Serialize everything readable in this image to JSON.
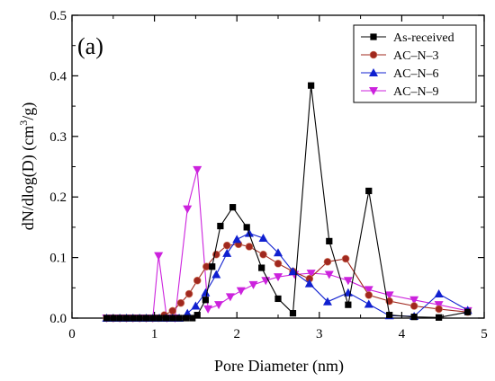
{
  "chart_data": {
    "type": "line",
    "panel_label": "(a)",
    "xlabel": "Pore Diameter (nm)",
    "ylabel_main": "dN/dlog(D) (cm",
    "ylabel_sup": "3",
    "ylabel_end": "/g)",
    "xlim": [
      0,
      5
    ],
    "ylim": [
      0,
      0.5
    ],
    "xticks": [
      0,
      1,
      2,
      3,
      4,
      5
    ],
    "yticks": [
      0.0,
      0.1,
      0.2,
      0.3,
      0.4,
      0.5
    ],
    "xtick_labels": [
      "0",
      "1",
      "2",
      "3",
      "4",
      "5"
    ],
    "ytick_labels": [
      "0.0",
      "0.1",
      "0.2",
      "0.3",
      "0.4",
      "0.5"
    ],
    "grid": false,
    "legend_position": "top-right",
    "series": [
      {
        "name": "As-received",
        "color": "#000000",
        "marker": "square",
        "points": [
          [
            0.42,
            0
          ],
          [
            0.5,
            0
          ],
          [
            0.58,
            0
          ],
          [
            0.66,
            0
          ],
          [
            0.74,
            0
          ],
          [
            0.82,
            0
          ],
          [
            0.9,
            0
          ],
          [
            0.98,
            0
          ],
          [
            1.06,
            0
          ],
          [
            1.14,
            0
          ],
          [
            1.22,
            0
          ],
          [
            1.3,
            0
          ],
          [
            1.38,
            0
          ],
          [
            1.46,
            0
          ],
          [
            1.52,
            0.005
          ],
          [
            1.62,
            0.03
          ],
          [
            1.7,
            0.085
          ],
          [
            1.8,
            0.152
          ],
          [
            1.95,
            0.183
          ],
          [
            2.12,
            0.15
          ],
          [
            2.3,
            0.083
          ],
          [
            2.5,
            0.032
          ],
          [
            2.68,
            0.008
          ],
          [
            2.9,
            0.384
          ],
          [
            3.12,
            0.127
          ],
          [
            3.35,
            0.022
          ],
          [
            3.6,
            0.21
          ],
          [
            3.85,
            0.005
          ],
          [
            4.15,
            0.002
          ],
          [
            4.45,
            0.001
          ],
          [
            4.8,
            0.01
          ]
        ]
      },
      {
        "name": "AC–N–3",
        "color": "#a0281e",
        "marker": "circle",
        "points": [
          [
            0.42,
            0
          ],
          [
            0.5,
            0
          ],
          [
            0.58,
            0
          ],
          [
            0.66,
            0
          ],
          [
            0.74,
            0
          ],
          [
            0.82,
            0
          ],
          [
            0.9,
            0
          ],
          [
            0.98,
            0
          ],
          [
            1.05,
            0
          ],
          [
            1.12,
            0.005
          ],
          [
            1.22,
            0.012
          ],
          [
            1.32,
            0.025
          ],
          [
            1.42,
            0.04
          ],
          [
            1.52,
            0.062
          ],
          [
            1.63,
            0.085
          ],
          [
            1.75,
            0.105
          ],
          [
            1.88,
            0.12
          ],
          [
            2.02,
            0.122
          ],
          [
            2.15,
            0.118
          ],
          [
            2.32,
            0.105
          ],
          [
            2.5,
            0.09
          ],
          [
            2.68,
            0.077
          ],
          [
            2.88,
            0.065
          ],
          [
            3.1,
            0.093
          ],
          [
            3.32,
            0.098
          ],
          [
            3.6,
            0.038
          ],
          [
            3.85,
            0.028
          ],
          [
            4.15,
            0.02
          ],
          [
            4.45,
            0.015
          ],
          [
            4.8,
            0.01
          ]
        ]
      },
      {
        "name": "AC–N–6",
        "color": "#1020d0",
        "marker": "triangle-up",
        "points": [
          [
            0.42,
            0
          ],
          [
            0.5,
            0
          ],
          [
            0.58,
            0
          ],
          [
            0.66,
            0
          ],
          [
            0.74,
            0
          ],
          [
            0.82,
            0
          ],
          [
            0.9,
            0
          ],
          [
            0.98,
            0
          ],
          [
            1.06,
            0
          ],
          [
            1.14,
            0
          ],
          [
            1.22,
            0
          ],
          [
            1.3,
            0
          ],
          [
            1.4,
            0.008
          ],
          [
            1.5,
            0.02
          ],
          [
            1.62,
            0.042
          ],
          [
            1.75,
            0.072
          ],
          [
            1.88,
            0.107
          ],
          [
            2.0,
            0.13
          ],
          [
            2.15,
            0.14
          ],
          [
            2.32,
            0.132
          ],
          [
            2.5,
            0.108
          ],
          [
            2.68,
            0.077
          ],
          [
            2.88,
            0.057
          ],
          [
            3.1,
            0.027
          ],
          [
            3.35,
            0.042
          ],
          [
            3.6,
            0.023
          ],
          [
            3.85,
            0.004
          ],
          [
            4.15,
            0.003
          ],
          [
            4.45,
            0.04
          ],
          [
            4.8,
            0.013
          ]
        ]
      },
      {
        "name": "AC–N–9",
        "color": "#cc22dd",
        "marker": "triangle-down",
        "points": [
          [
            0.42,
            0
          ],
          [
            0.5,
            0
          ],
          [
            0.58,
            0
          ],
          [
            0.66,
            0
          ],
          [
            0.74,
            0
          ],
          [
            0.82,
            0
          ],
          [
            0.9,
            0
          ],
          [
            0.98,
            0
          ],
          [
            1.05,
            0.103
          ],
          [
            1.15,
            0
          ],
          [
            1.25,
            0
          ],
          [
            1.4,
            0.18
          ],
          [
            1.52,
            0.245
          ],
          [
            1.65,
            0.015
          ],
          [
            1.78,
            0.022
          ],
          [
            1.92,
            0.035
          ],
          [
            2.05,
            0.045
          ],
          [
            2.2,
            0.055
          ],
          [
            2.35,
            0.062
          ],
          [
            2.5,
            0.068
          ],
          [
            2.7,
            0.072
          ],
          [
            2.9,
            0.074
          ],
          [
            3.12,
            0.072
          ],
          [
            3.35,
            0.062
          ],
          [
            3.6,
            0.047
          ],
          [
            3.85,
            0.038
          ],
          [
            4.15,
            0.03
          ],
          [
            4.45,
            0.022
          ],
          [
            4.8,
            0.012
          ]
        ]
      }
    ]
  }
}
